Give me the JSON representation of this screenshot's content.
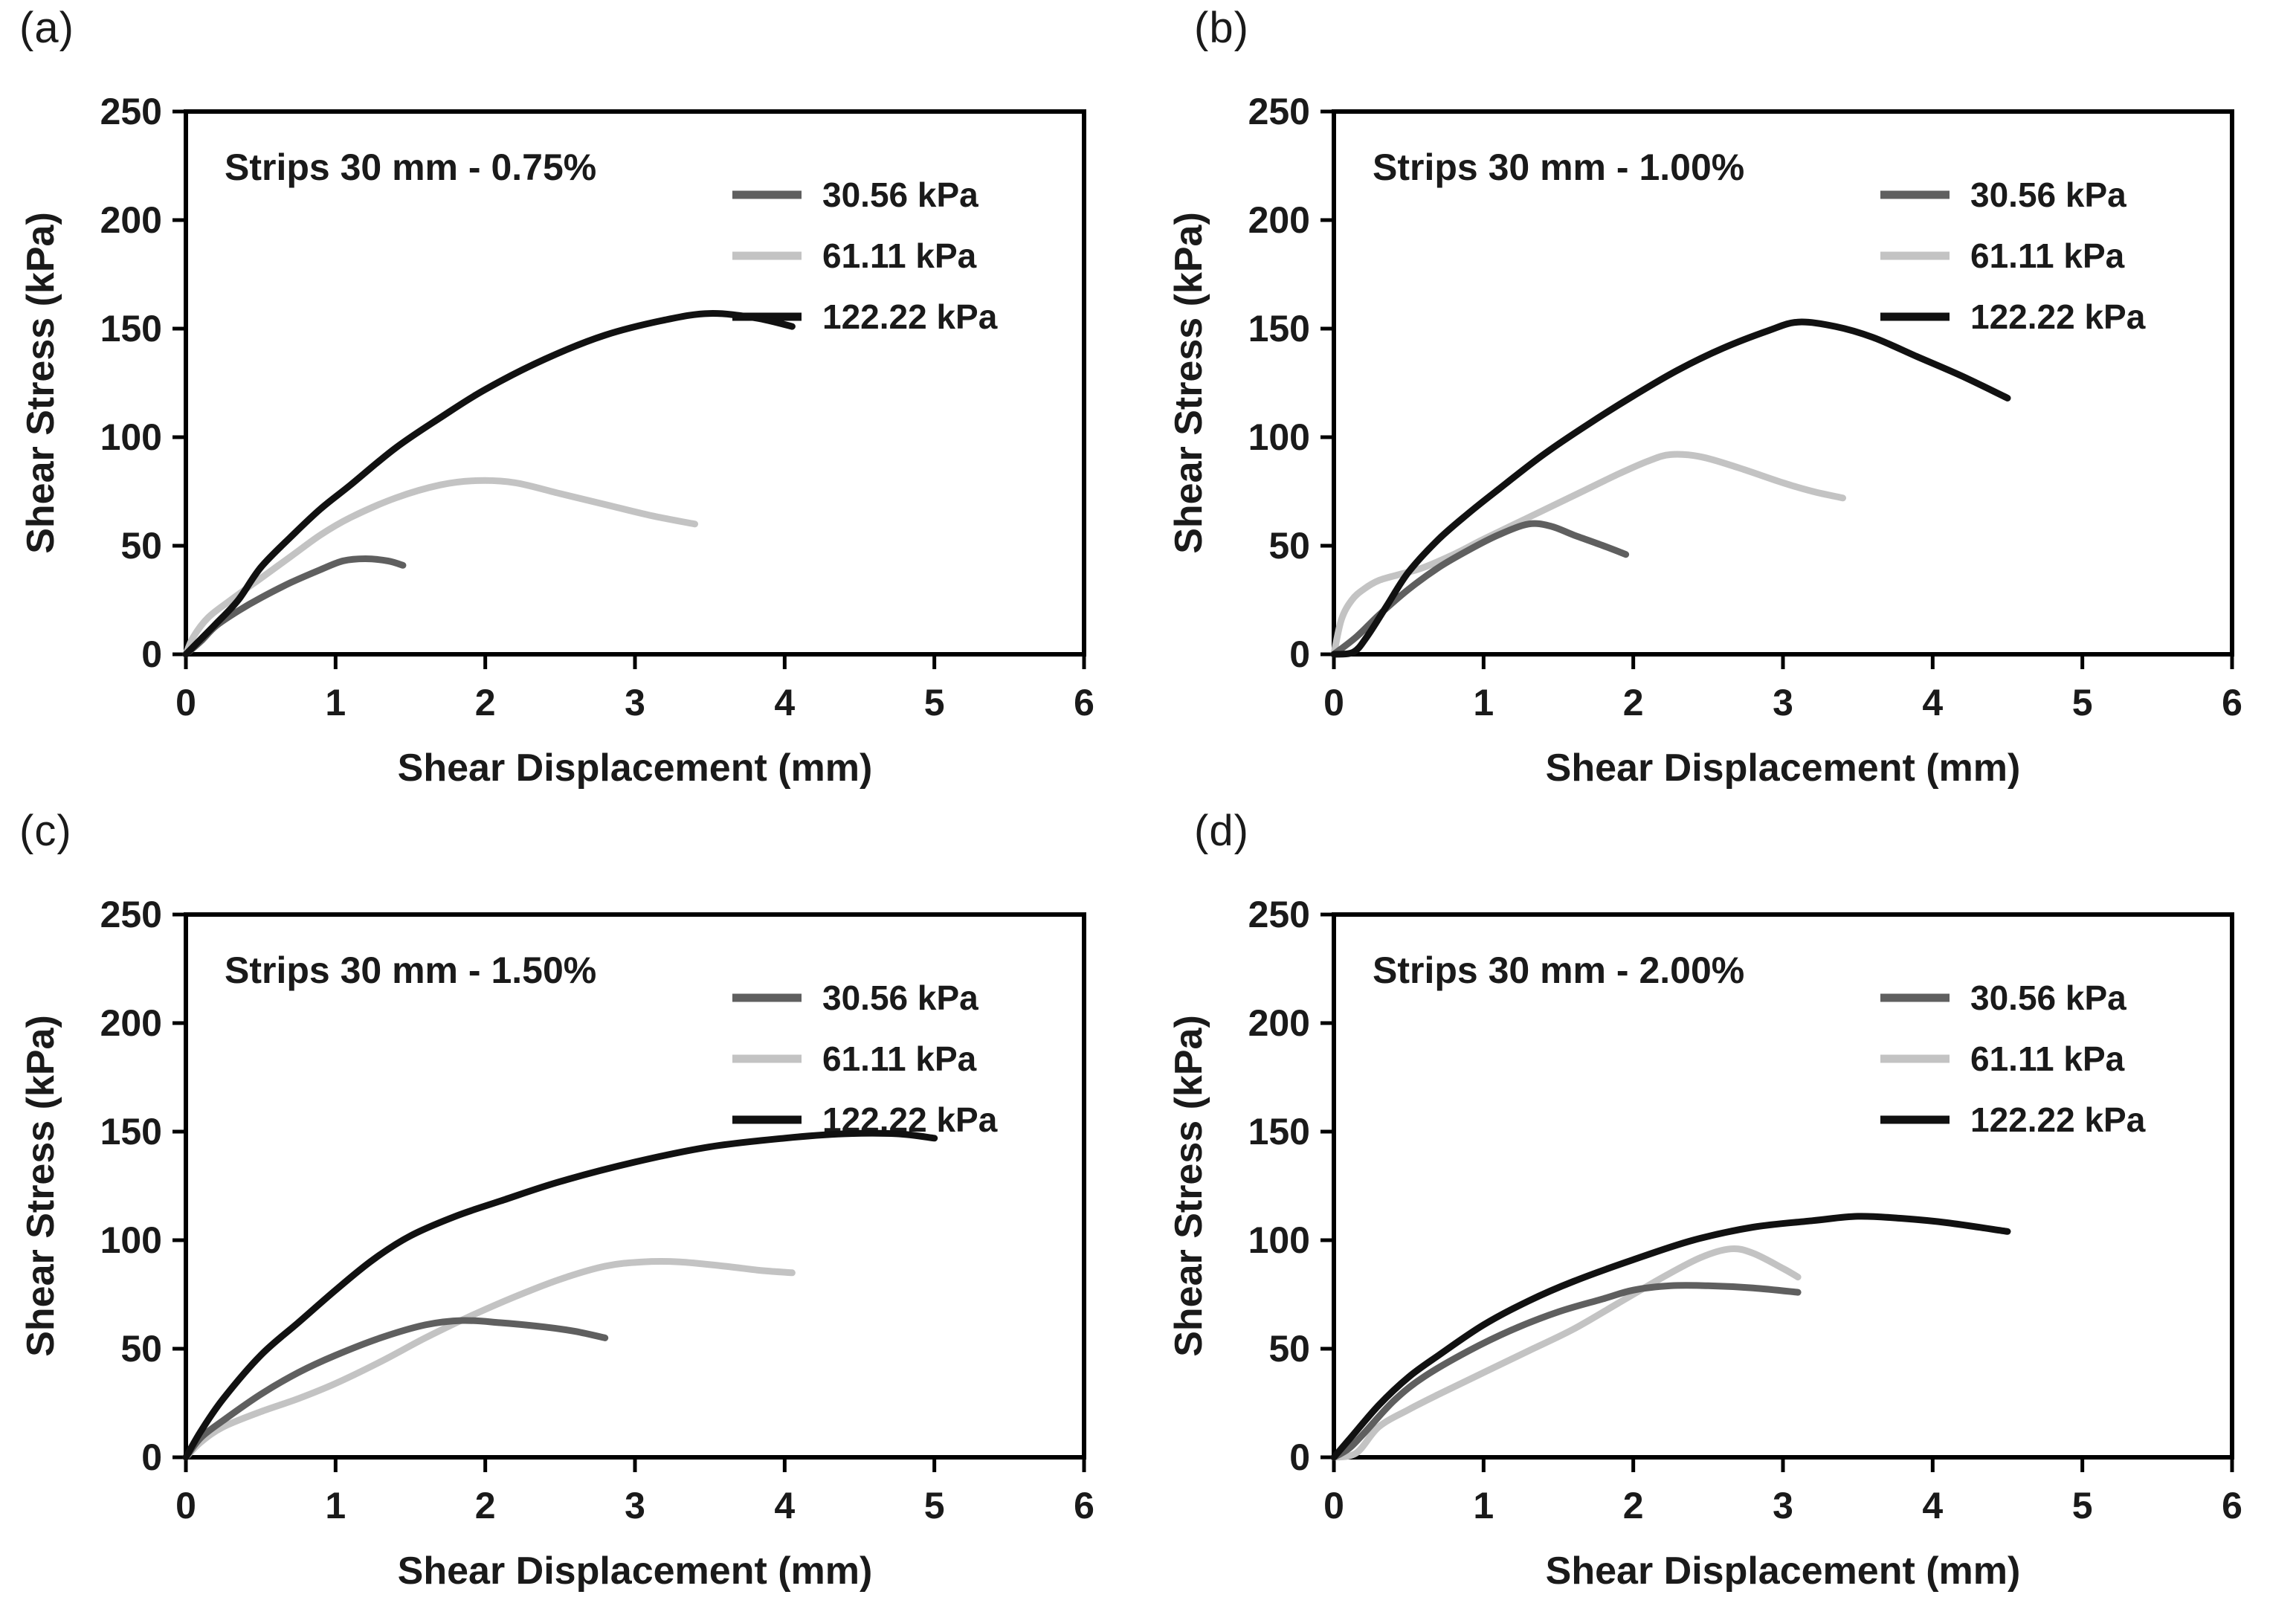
{
  "figure": {
    "background": "#ffffff",
    "text_color": "#1a1a1a",
    "axis_color": "#000000"
  },
  "chart_data": [
    {
      "panel": "(a)",
      "type": "line",
      "title": "Strips 30 mm - 0.75%",
      "xlabel": "Shear Displacement (mm)",
      "ylabel": "Shear Stress (kPa)",
      "xlim": [
        0,
        6
      ],
      "ylim": [
        0,
        250
      ],
      "xticks": [
        0,
        1,
        2,
        3,
        4,
        5,
        6
      ],
      "yticks": [
        0,
        50,
        100,
        150,
        200,
        250
      ],
      "grid": false,
      "legend_position": "top-right",
      "series": [
        {
          "name": "30.56 kPa",
          "color": "#5f5f5f",
          "points": [
            [
              0,
              0
            ],
            [
              0.1,
              6
            ],
            [
              0.2,
              13
            ],
            [
              0.35,
              20
            ],
            [
              0.5,
              26
            ],
            [
              0.7,
              33
            ],
            [
              0.9,
              39
            ],
            [
              1.05,
              43
            ],
            [
              1.2,
              44
            ],
            [
              1.35,
              43
            ],
            [
              1.45,
              41
            ]
          ]
        },
        {
          "name": "61.11 kPa",
          "color": "#c3c3c3",
          "points": [
            [
              0,
              0
            ],
            [
              0.05,
              8
            ],
            [
              0.15,
              17
            ],
            [
              0.3,
              25
            ],
            [
              0.5,
              35
            ],
            [
              0.7,
              45
            ],
            [
              0.9,
              55
            ],
            [
              1.1,
              63
            ],
            [
              1.4,
              72
            ],
            [
              1.7,
              78
            ],
            [
              1.95,
              80
            ],
            [
              2.2,
              79
            ],
            [
              2.5,
              74
            ],
            [
              2.8,
              69
            ],
            [
              3.1,
              64
            ],
            [
              3.4,
              60
            ]
          ]
        },
        {
          "name": "122.22 kPa",
          "color": "#111111",
          "points": [
            [
              0,
              0
            ],
            [
              0.1,
              7
            ],
            [
              0.2,
              14
            ],
            [
              0.35,
              25
            ],
            [
              0.5,
              40
            ],
            [
              0.7,
              54
            ],
            [
              0.9,
              67
            ],
            [
              1.1,
              78
            ],
            [
              1.4,
              95
            ],
            [
              1.7,
              109
            ],
            [
              2.0,
              122
            ],
            [
              2.4,
              136
            ],
            [
              2.8,
              147
            ],
            [
              3.2,
              154
            ],
            [
              3.5,
              157
            ],
            [
              3.8,
              155
            ],
            [
              4.05,
              151
            ]
          ]
        }
      ]
    },
    {
      "panel": "(b)",
      "type": "line",
      "title": "Strips 30 mm - 1.00%",
      "xlabel": "Shear Displacement (mm)",
      "ylabel": "Shear Stress (kPa)",
      "xlim": [
        0,
        6
      ],
      "ylim": [
        0,
        250
      ],
      "xticks": [
        0,
        1,
        2,
        3,
        4,
        5,
        6
      ],
      "yticks": [
        0,
        50,
        100,
        150,
        200,
        250
      ],
      "grid": false,
      "legend_position": "top-right",
      "series": [
        {
          "name": "30.56 kPa",
          "color": "#5f5f5f",
          "points": [
            [
              0,
              0
            ],
            [
              0.15,
              8
            ],
            [
              0.3,
              18
            ],
            [
              0.5,
              30
            ],
            [
              0.7,
              40
            ],
            [
              0.9,
              48
            ],
            [
              1.1,
              55
            ],
            [
              1.3,
              60
            ],
            [
              1.45,
              59
            ],
            [
              1.6,
              55
            ],
            [
              1.8,
              50
            ],
            [
              1.95,
              46
            ]
          ]
        },
        {
          "name": "61.11 kPa",
          "color": "#c3c3c3",
          "points": [
            [
              0,
              0
            ],
            [
              0.05,
              16
            ],
            [
              0.12,
              25
            ],
            [
              0.2,
              30
            ],
            [
              0.3,
              34
            ],
            [
              0.45,
              37
            ],
            [
              0.6,
              40
            ],
            [
              0.8,
              46
            ],
            [
              1.0,
              53
            ],
            [
              1.3,
              63
            ],
            [
              1.6,
              73
            ],
            [
              1.9,
              83
            ],
            [
              2.1,
              89
            ],
            [
              2.25,
              92
            ],
            [
              2.45,
              91
            ],
            [
              2.7,
              86
            ],
            [
              3.0,
              79
            ],
            [
              3.2,
              75
            ],
            [
              3.4,
              72
            ]
          ]
        },
        {
          "name": "122.22 kPa",
          "color": "#111111",
          "points": [
            [
              0,
              0
            ],
            [
              0.13,
              1
            ],
            [
              0.22,
              8
            ],
            [
              0.35,
              22
            ],
            [
              0.5,
              38
            ],
            [
              0.7,
              53
            ],
            [
              0.9,
              65
            ],
            [
              1.1,
              76
            ],
            [
              1.4,
              92
            ],
            [
              1.7,
              106
            ],
            [
              2.0,
              119
            ],
            [
              2.3,
              131
            ],
            [
              2.6,
              141
            ],
            [
              2.9,
              149
            ],
            [
              3.1,
              153
            ],
            [
              3.35,
              151
            ],
            [
              3.6,
              146
            ],
            [
              3.9,
              137
            ],
            [
              4.2,
              128
            ],
            [
              4.5,
              118
            ]
          ]
        }
      ]
    },
    {
      "panel": "(c)",
      "type": "line",
      "title": "Strips 30 mm - 1.50%",
      "xlabel": "Shear Displacement (mm)",
      "ylabel": "Shear Stress (kPa)",
      "xlim": [
        0,
        6
      ],
      "ylim": [
        0,
        250
      ],
      "xticks": [
        0,
        1,
        2,
        3,
        4,
        5,
        6
      ],
      "yticks": [
        0,
        50,
        100,
        150,
        200,
        250
      ],
      "grid": false,
      "legend_position": "top-right",
      "series": [
        {
          "name": "30.56 kPa",
          "color": "#5f5f5f",
          "points": [
            [
              0,
              0
            ],
            [
              0.1,
              9
            ],
            [
              0.25,
              17
            ],
            [
              0.5,
              29
            ],
            [
              0.75,
              39
            ],
            [
              1.0,
              47
            ],
            [
              1.3,
              55
            ],
            [
              1.6,
              61
            ],
            [
              1.85,
              63
            ],
            [
              2.1,
              62
            ],
            [
              2.4,
              60
            ],
            [
              2.6,
              58
            ],
            [
              2.8,
              55
            ]
          ]
        },
        {
          "name": "61.11 kPa",
          "color": "#c3c3c3",
          "points": [
            [
              0,
              0
            ],
            [
              0.1,
              7
            ],
            [
              0.25,
              14
            ],
            [
              0.5,
              21
            ],
            [
              0.75,
              27
            ],
            [
              1.0,
              34
            ],
            [
              1.3,
              44
            ],
            [
              1.6,
              55
            ],
            [
              1.9,
              65
            ],
            [
              2.2,
              74
            ],
            [
              2.5,
              82
            ],
            [
              2.8,
              88
            ],
            [
              3.05,
              90
            ],
            [
              3.3,
              90
            ],
            [
              3.6,
              88
            ],
            [
              3.85,
              86
            ],
            [
              4.05,
              85
            ]
          ]
        },
        {
          "name": "122.22 kPa",
          "color": "#111111",
          "points": [
            [
              0,
              0
            ],
            [
              0.1,
              12
            ],
            [
              0.25,
              27
            ],
            [
              0.5,
              47
            ],
            [
              0.75,
              62
            ],
            [
              1.0,
              77
            ],
            [
              1.25,
              91
            ],
            [
              1.5,
              102
            ],
            [
              1.8,
              111
            ],
            [
              2.1,
              118
            ],
            [
              2.5,
              127
            ],
            [
              3.0,
              136
            ],
            [
              3.5,
              143
            ],
            [
              4.0,
              147
            ],
            [
              4.4,
              149
            ],
            [
              4.75,
              149
            ],
            [
              5.0,
              147
            ]
          ]
        }
      ]
    },
    {
      "panel": "(d)",
      "type": "line",
      "title": "Strips 30 mm - 2.00%",
      "xlabel": "Shear Displacement (mm)",
      "ylabel": "Shear Stress (kPa)",
      "xlim": [
        0,
        6
      ],
      "ylim": [
        0,
        250
      ],
      "xticks": [
        0,
        1,
        2,
        3,
        4,
        5,
        6
      ],
      "yticks": [
        0,
        50,
        100,
        150,
        200,
        250
      ],
      "grid": false,
      "legend_position": "top-right",
      "series": [
        {
          "name": "30.56 kPa",
          "color": "#5f5f5f",
          "points": [
            [
              0,
              0
            ],
            [
              0.1,
              4
            ],
            [
              0.2,
              11
            ],
            [
              0.4,
              26
            ],
            [
              0.6,
              37
            ],
            [
              0.9,
              49
            ],
            [
              1.2,
              59
            ],
            [
              1.5,
              67
            ],
            [
              1.8,
              73
            ],
            [
              2.0,
              77
            ],
            [
              2.25,
              79
            ],
            [
              2.5,
              79
            ],
            [
              2.8,
              78
            ],
            [
              3.1,
              76
            ]
          ]
        },
        {
          "name": "61.11 kPa",
          "color": "#c3c3c3",
          "points": [
            [
              0,
              0
            ],
            [
              0.15,
              2
            ],
            [
              0.3,
              14
            ],
            [
              0.5,
              22
            ],
            [
              0.7,
              29
            ],
            [
              1.0,
              39
            ],
            [
              1.3,
              49
            ],
            [
              1.6,
              59
            ],
            [
              1.9,
              71
            ],
            [
              2.2,
              83
            ],
            [
              2.45,
              92
            ],
            [
              2.65,
              96
            ],
            [
              2.8,
              94
            ],
            [
              3.0,
              87
            ],
            [
              3.1,
              83
            ]
          ]
        },
        {
          "name": "122.22 kPa",
          "color": "#111111",
          "points": [
            [
              0,
              0
            ],
            [
              0.1,
              8
            ],
            [
              0.3,
              24
            ],
            [
              0.5,
              37
            ],
            [
              0.7,
              47
            ],
            [
              1.0,
              61
            ],
            [
              1.3,
              72
            ],
            [
              1.6,
              81
            ],
            [
              2.0,
              91
            ],
            [
              2.4,
              100
            ],
            [
              2.8,
              106
            ],
            [
              3.2,
              109
            ],
            [
              3.5,
              111
            ],
            [
              3.8,
              110
            ],
            [
              4.1,
              108
            ],
            [
              4.5,
              104
            ]
          ]
        }
      ]
    }
  ]
}
